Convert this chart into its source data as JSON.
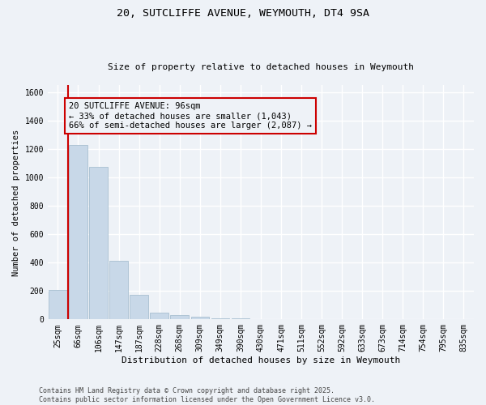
{
  "title1": "20, SUTCLIFFE AVENUE, WEYMOUTH, DT4 9SA",
  "title2": "Size of property relative to detached houses in Weymouth",
  "xlabel": "Distribution of detached houses by size in Weymouth",
  "ylabel": "Number of detached properties",
  "categories": [
    "25sqm",
    "66sqm",
    "106sqm",
    "147sqm",
    "187sqm",
    "228sqm",
    "268sqm",
    "309sqm",
    "349sqm",
    "390sqm",
    "430sqm",
    "471sqm",
    "511sqm",
    "552sqm",
    "592sqm",
    "633sqm",
    "673sqm",
    "714sqm",
    "754sqm",
    "795sqm",
    "835sqm"
  ],
  "values": [
    205,
    1230,
    1075,
    415,
    175,
    50,
    30,
    20,
    10,
    5,
    0,
    0,
    0,
    0,
    0,
    0,
    0,
    0,
    0,
    0,
    0
  ],
  "bar_color": "#c8d8e8",
  "bar_edge_color": "#a8bfd0",
  "vline_x": 0.5,
  "vline_color": "#cc0000",
  "annotation_text": "20 SUTCLIFFE AVENUE: 96sqm\n← 33% of detached houses are smaller (1,043)\n66% of semi-detached houses are larger (2,087) →",
  "annotation_box_color": "#cc0000",
  "annotation_text_color": "#000000",
  "ylim": [
    0,
    1650
  ],
  "yticks": [
    0,
    200,
    400,
    600,
    800,
    1000,
    1200,
    1400,
    1600
  ],
  "bg_color": "#eef2f7",
  "grid_color": "#ffffff",
  "footer": "Contains HM Land Registry data © Crown copyright and database right 2025.\nContains public sector information licensed under the Open Government Licence v3.0.",
  "font_family": "DejaVu Sans Mono",
  "title1_fontsize": 9.5,
  "title2_fontsize": 8.0,
  "xlabel_fontsize": 8.0,
  "ylabel_fontsize": 7.5,
  "tick_fontsize": 7.0,
  "annotation_fontsize": 7.5,
  "footer_fontsize": 6.0
}
